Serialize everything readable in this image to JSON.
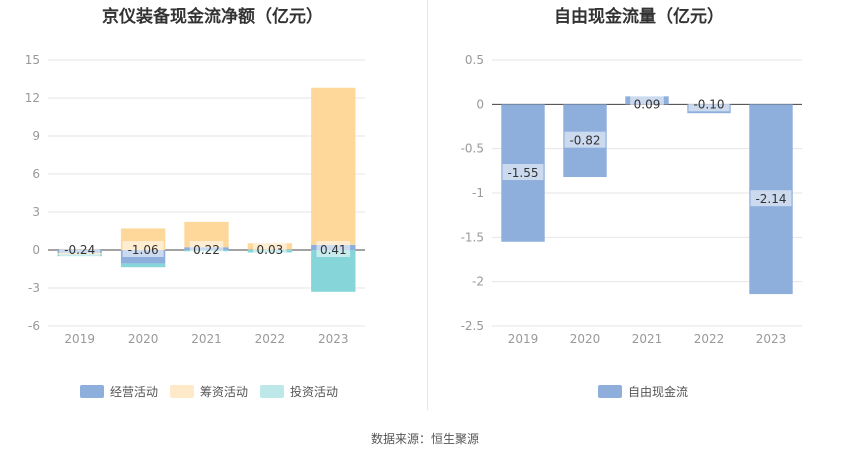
{
  "source_text": "数据来源：恒生聚源",
  "colors": {
    "operating": "#8eaedc",
    "financing": "#fdd89a",
    "investing": "#86d6d9",
    "free_cash": "#8eaedc",
    "grid": "#e6e6e6",
    "axis_text": "#999999"
  },
  "chart_data": [
    {
      "type": "bar",
      "stacked": true,
      "title": "京仪装备现金流净额（亿元）",
      "categories": [
        "2019",
        "2020",
        "2021",
        "2022",
        "2023"
      ],
      "ylim": [
        -6,
        15
      ],
      "yticks": [
        15,
        12,
        9,
        6,
        3,
        0,
        -3,
        -6
      ],
      "series": [
        {
          "name": "经营活动",
          "values": [
            -0.24,
            -1.06,
            0.22,
            0.03,
            0.41
          ],
          "color_key": "operating"
        },
        {
          "name": "筹资活动",
          "values": [
            -0.1,
            1.7,
            2.0,
            0.5,
            12.4
          ],
          "color_key": "financing"
        },
        {
          "name": "投资活动",
          "values": [
            -0.15,
            -0.3,
            -0.1,
            -0.2,
            -3.3
          ],
          "color_key": "investing"
        }
      ],
      "data_labels": [
        "-0.24",
        "-1.06",
        "0.22",
        "0.03",
        "0.41"
      ],
      "legend_position": "bottom"
    },
    {
      "type": "bar",
      "title": "自由现金流量（亿元）",
      "categories": [
        "2019",
        "2020",
        "2021",
        "2022",
        "2023"
      ],
      "ylim": [
        -2.5,
        0.5
      ],
      "yticks": [
        "0.5",
        "0",
        "-0.5",
        "-1",
        "-1.5",
        "-2",
        "-2.5"
      ],
      "series": [
        {
          "name": "自由现金流",
          "values": [
            -1.55,
            -0.82,
            0.09,
            -0.1,
            -2.14
          ],
          "color_key": "free_cash"
        }
      ],
      "data_labels": [
        "-1.55",
        "-0.82",
        "0.09",
        "-0.10",
        "-2.14"
      ],
      "legend_position": "bottom"
    }
  ]
}
